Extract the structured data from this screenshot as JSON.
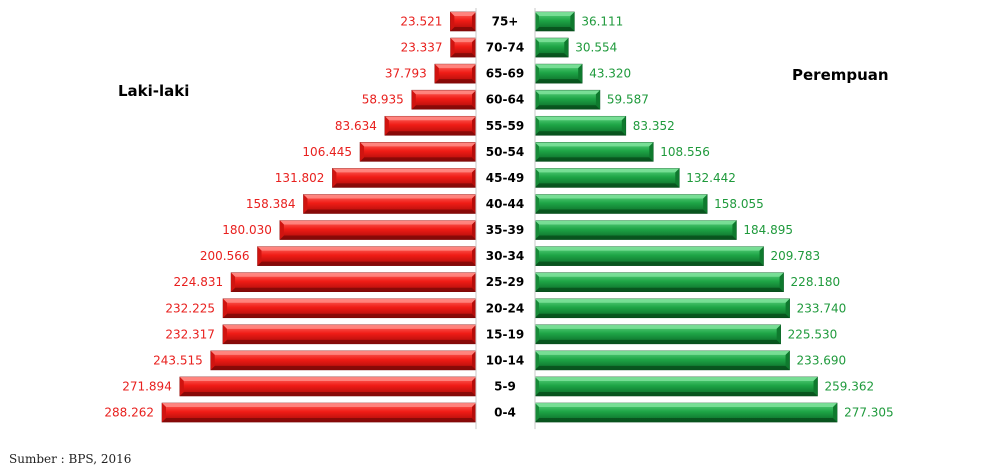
{
  "chart_data": {
    "type": "bar",
    "orientation": "horizontal",
    "layout": "population-pyramid",
    "categories": [
      "0-4",
      "5-9",
      "10-14",
      "15-19",
      "20-24",
      "25-29",
      "30-34",
      "35-39",
      "40-44",
      "45-49",
      "50-54",
      "55-59",
      "60-64",
      "65-69",
      "70-74",
      "75+"
    ],
    "series": [
      {
        "name": "Laki-laki",
        "color": "#e8201e",
        "values": [
          288262,
          271894,
          243515,
          232317,
          232225,
          224831,
          200566,
          180030,
          158384,
          131802,
          106445,
          83634,
          58935,
          37793,
          23337,
          23521
        ],
        "labels": [
          "288.262",
          "271.894",
          "243.515",
          "232.317",
          "232.225",
          "224.831",
          "200.566",
          "180.030",
          "158.384",
          "131.802",
          "106.445",
          "83.634",
          "58.935",
          "37.793",
          "23.337",
          "23.521"
        ]
      },
      {
        "name": "Perempuan",
        "color": "#1f9a3c",
        "values": [
          277305,
          259362,
          233690,
          225530,
          233740,
          228180,
          209783,
          184895,
          158055,
          132442,
          108556,
          83352,
          59587,
          43320,
          30554,
          36111
        ],
        "labels": [
          "277.305",
          "259.362",
          "233.690",
          "225.530",
          "233.740",
          "228.180",
          "209.783",
          "184.895",
          "158.055",
          "132.442",
          "108.556",
          "83.352",
          "59.587",
          "43.320",
          "30.554",
          "36.111"
        ]
      }
    ],
    "title": "",
    "xlabel": "",
    "ylabel": "",
    "grid": false,
    "legend": "none"
  },
  "source": "Sumber : BPS, 2016"
}
